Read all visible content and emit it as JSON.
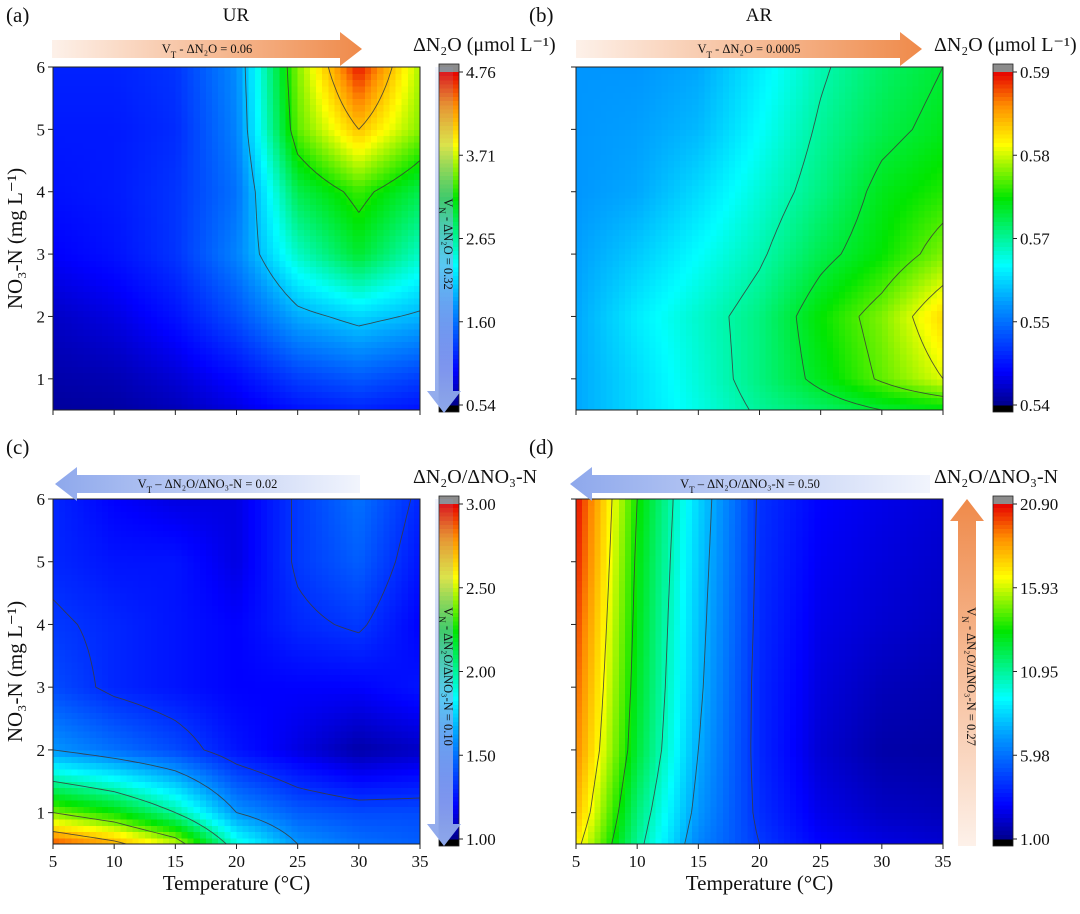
{
  "figure": {
    "shared_xlabel": "Temperature (°C)",
    "shared_ylabel": "NO₃-N (mg L⁻¹)"
  },
  "chart_data": [
    {
      "type": "heatmap",
      "panel_letter": "(a)",
      "panel_title": "UR",
      "colorbar_title": "ΔN₂O (μmol L⁻¹)",
      "colorbar_ticks": [
        "0.54",
        "1.60",
        "2.65",
        "3.71",
        "4.76"
      ],
      "zlim": [
        0.54,
        4.76
      ],
      "xlabel": "",
      "ylabel": "NO₃-N (mg L⁻¹)",
      "xlim": [
        5,
        35
      ],
      "ylim": [
        0.5,
        6
      ],
      "x_ticks": [
        5,
        10,
        15,
        20,
        25,
        30,
        35
      ],
      "y_ticks": [
        1,
        2,
        3,
        4,
        5,
        6
      ],
      "show_x_tick_labels": false,
      "x": [
        5,
        10,
        15,
        20,
        25,
        30,
        35
      ],
      "y": [
        0.5,
        1,
        2,
        3,
        4,
        5,
        6
      ],
      "z": [
        [
          0.6,
          0.62,
          0.7,
          0.85,
          1.05,
          1.15,
          1.05
        ],
        [
          0.65,
          0.68,
          0.8,
          1.0,
          1.3,
          1.45,
          1.3
        ],
        [
          0.75,
          0.85,
          1.05,
          1.4,
          1.9,
          2.1,
          1.95
        ],
        [
          0.95,
          1.05,
          1.25,
          1.7,
          2.5,
          3.0,
          2.5
        ],
        [
          1.05,
          1.1,
          1.25,
          1.6,
          2.9,
          3.3,
          2.9
        ],
        [
          1.1,
          1.1,
          1.2,
          1.7,
          3.4,
          4.1,
          3.5
        ],
        [
          1.15,
          1.15,
          1.25,
          1.75,
          3.5,
          4.7,
          3.6
        ]
      ],
      "contour_levels": [
        2.0,
        3.2,
        4.1
      ],
      "arrows": [
        {
          "label": "V_T - ΔN₂O = 0.06",
          "orientation": "horizontal",
          "direction": "right",
          "color": "#ef8a4a"
        },
        {
          "label": "V_N - ΔN₂O = 0.32",
          "orientation": "vertical",
          "direction": "down",
          "color": "#8ea8ec"
        }
      ]
    },
    {
      "type": "heatmap",
      "panel_letter": "(b)",
      "panel_title": "AR",
      "colorbar_title": "ΔN₂O (μmol L⁻¹)",
      "colorbar_ticks": [
        "0.54",
        "0.55",
        "0.57",
        "0.58",
        "0.59"
      ],
      "zlim": [
        0.54,
        0.59
      ],
      "xlabel": "",
      "ylabel": "",
      "xlim": [
        5,
        35
      ],
      "ylim": [
        0.5,
        6
      ],
      "x_ticks": [
        5,
        10,
        15,
        20,
        25,
        30,
        35
      ],
      "y_ticks": [
        1,
        2,
        3,
        4,
        5,
        6
      ],
      "show_x_tick_labels": false,
      "show_y_tick_labels": false,
      "x": [
        5,
        10,
        15,
        20,
        25,
        30,
        35
      ],
      "y": [
        0.5,
        1,
        2,
        3,
        4,
        5,
        6
      ],
      "z": [
        [
          0.556,
          0.559,
          0.562,
          0.565,
          0.567,
          0.569,
          0.57
        ],
        [
          0.556,
          0.559,
          0.5625,
          0.566,
          0.57,
          0.574,
          0.578
        ],
        [
          0.556,
          0.56,
          0.563,
          0.566,
          0.571,
          0.575,
          0.581
        ],
        [
          0.5555,
          0.558,
          0.561,
          0.564,
          0.568,
          0.571,
          0.575
        ],
        [
          0.555,
          0.556,
          0.559,
          0.5625,
          0.566,
          0.57,
          0.572
        ],
        [
          0.555,
          0.5555,
          0.557,
          0.561,
          0.565,
          0.568,
          0.57
        ],
        [
          0.555,
          0.555,
          0.556,
          0.56,
          0.564,
          0.567,
          0.569
        ]
      ],
      "contour_levels": [
        0.5645,
        0.569,
        0.5735,
        0.578
      ],
      "arrows": [
        {
          "label": "V_T - ΔN₂O = 0.0005",
          "orientation": "horizontal",
          "direction": "right",
          "color": "#ef8a4a"
        }
      ]
    },
    {
      "type": "heatmap",
      "panel_letter": "(c)",
      "panel_title": "",
      "colorbar_title": "ΔN₂O/ΔNO₃-N",
      "colorbar_ticks": [
        "1.00",
        "1.50",
        "2.00",
        "2.50",
        "3.00"
      ],
      "zlim": [
        1.0,
        3.0
      ],
      "xlabel": "Temperature (°C)",
      "ylabel": "NO₃-N (mg L⁻¹)",
      "xlim": [
        5,
        35
      ],
      "ylim": [
        0.5,
        6
      ],
      "x_ticks": [
        5,
        10,
        15,
        20,
        25,
        30,
        35
      ],
      "y_ticks": [
        1,
        2,
        3,
        4,
        5,
        6
      ],
      "x": [
        5,
        10,
        15,
        20,
        25,
        30,
        35
      ],
      "y": [
        0.5,
        1,
        2,
        3,
        4,
        5,
        6
      ],
      "z": [
        [
          2.9,
          2.75,
          2.5,
          1.9,
          1.6,
          1.5,
          1.45
        ],
        [
          2.4,
          2.25,
          2.0,
          1.6,
          1.45,
          1.4,
          1.4
        ],
        [
          1.6,
          1.5,
          1.4,
          1.25,
          1.15,
          1.05,
          1.1
        ],
        [
          1.4,
          1.3,
          1.25,
          1.2,
          1.2,
          1.2,
          1.25
        ],
        [
          1.35,
          1.3,
          1.25,
          1.2,
          1.3,
          1.35,
          1.2
        ],
        [
          1.3,
          1.25,
          1.25,
          1.15,
          1.35,
          1.45,
          1.25
        ],
        [
          1.3,
          1.2,
          1.15,
          1.15,
          1.35,
          1.5,
          1.3
        ]
      ],
      "contour_levels": [
        1.33,
        1.6,
        2.0,
        2.4,
        2.7
      ],
      "arrows": [
        {
          "label": "V_T – ΔN₂O/ΔNO₃-N = 0.02",
          "orientation": "horizontal",
          "direction": "left",
          "color": "#8ea8ec"
        },
        {
          "label": "V_N - ΔN₂O/ΔNO₃-N = 0.10",
          "orientation": "vertical",
          "direction": "down",
          "color": "#8ea8ec"
        }
      ]
    },
    {
      "type": "heatmap",
      "panel_letter": "(d)",
      "panel_title": "",
      "colorbar_title": "ΔN₂O/ΔNO₃-N",
      "colorbar_ticks": [
        "1.00",
        "5.98",
        "10.95",
        "15.93",
        "20.90"
      ],
      "zlim": [
        1.0,
        20.9
      ],
      "xlabel": "Temperature (°C)",
      "ylabel": "",
      "xlim": [
        5,
        35
      ],
      "ylim": [
        0.5,
        6
      ],
      "x_ticks": [
        5,
        10,
        15,
        20,
        25,
        30,
        35
      ],
      "y_ticks": [
        1,
        2,
        3,
        4,
        5,
        6
      ],
      "show_y_tick_labels": false,
      "x": [
        5,
        10,
        15,
        20,
        25,
        30,
        35
      ],
      "y": [
        0.5,
        1,
        2,
        3,
        4,
        5,
        6
      ],
      "z": [
        [
          17.0,
          11.0,
          6.5,
          4.5,
          3.0,
          2.5,
          2.2
        ],
        [
          18.0,
          11.5,
          7.0,
          4.2,
          2.6,
          2.0,
          1.8
        ],
        [
          19.0,
          12.5,
          7.5,
          4.0,
          2.2,
          1.5,
          1.4
        ],
        [
          19.5,
          12.8,
          7.8,
          4.0,
          2.4,
          1.8,
          1.6
        ],
        [
          20.0,
          13.0,
          8.0,
          4.1,
          2.6,
          2.2,
          1.9
        ],
        [
          20.5,
          13.2,
          8.2,
          4.2,
          2.8,
          2.4,
          2.1
        ],
        [
          20.8,
          13.5,
          8.4,
          4.3,
          3.0,
          2.6,
          2.3
        ]
      ],
      "contour_levels": [
        4.5,
        7.5,
        10.5,
        13.5,
        16.5
      ],
      "arrows": [
        {
          "label": "V_T – ΔN₂O/ΔNO₃-N = 0.50",
          "orientation": "horizontal",
          "direction": "left",
          "color": "#8ea8ec"
        },
        {
          "label": "V_N - ΔN₂O/ΔNO₃-N = 0.27",
          "orientation": "vertical",
          "direction": "up",
          "color": "#ef8a4a"
        }
      ]
    }
  ]
}
